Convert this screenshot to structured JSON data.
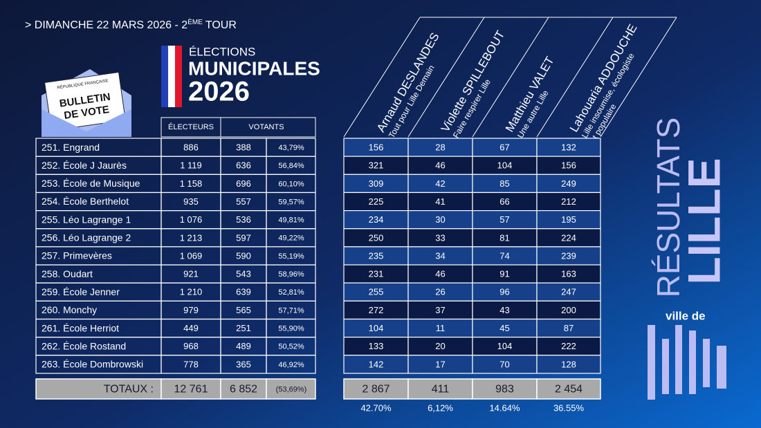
{
  "header": {
    "date": "> DIMANCHE 22 MARS 2026 - 2",
    "date_sup": "ÈME",
    "date_end": "TOUR"
  },
  "logo": {
    "line1": "ÉLECTIONS",
    "line2": "MUNICIPALES",
    "line3": "2026"
  },
  "ballot": {
    "republic": "RÉPUBLIQUE FRANÇAISE",
    "line1": "BULLETIN",
    "line2": "DE VOTE"
  },
  "table": {
    "headers": {
      "electeurs": "ÉLECTEURS",
      "votants": "VOTANTS"
    },
    "candidates": [
      {
        "name": "Arnaud DESLANDES",
        "list": [
          "Tout pour Lille Demain"
        ]
      },
      {
        "name": "Violette SPILLEBOUT",
        "list": [
          "Faire respirer Lille"
        ]
      },
      {
        "name": "Matthieu VALET",
        "list": [
          "Une autre Lille"
        ]
      },
      {
        "name": "Lahouaria ADDOUCHE",
        "list": [
          "Lille insoumise, écologiste",
          "et populaire"
        ]
      }
    ],
    "rows": [
      {
        "bureau": "251. Engrand",
        "electeurs": "886",
        "votants": 388,
        "pct": "43,79%",
        "votes": [
          156,
          28,
          67,
          132
        ]
      },
      {
        "bureau": "252. École J Jaurès",
        "electeurs": "1 119",
        "votants": 636,
        "pct": "56,84%",
        "votes": [
          321,
          46,
          104,
          156
        ]
      },
      {
        "bureau": "253. École de Musique",
        "electeurs": "1 158",
        "votants": 696,
        "pct": "60,10%",
        "votes": [
          309,
          42,
          85,
          249
        ]
      },
      {
        "bureau": "254. École Berthelot",
        "electeurs": "935",
        "votants": 557,
        "pct": "59,57%",
        "votes": [
          225,
          41,
          66,
          212
        ]
      },
      {
        "bureau": "255. Léo Lagrange 1",
        "electeurs": "1 076",
        "votants": 536,
        "pct": "49,81%",
        "votes": [
          234,
          30,
          57,
          195
        ]
      },
      {
        "bureau": "256. Léo Lagrange 2",
        "electeurs": "1 213",
        "votants": 597,
        "pct": "49,22%",
        "votes": [
          250,
          33,
          81,
          224
        ]
      },
      {
        "bureau": "257. Primevères",
        "electeurs": "1 069",
        "votants": 590,
        "pct": "55,19%",
        "votes": [
          235,
          34,
          74,
          239
        ]
      },
      {
        "bureau": "258. Oudart",
        "electeurs": "921",
        "votants": 543,
        "pct": "58,96%",
        "votes": [
          231,
          46,
          91,
          163
        ]
      },
      {
        "bureau": "259. École Jenner",
        "electeurs": "1 210",
        "votants": 639,
        "pct": "52,81%",
        "votes": [
          255,
          26,
          96,
          247
        ]
      },
      {
        "bureau": "260. Monchy",
        "electeurs": "979",
        "votants": 565,
        "pct": "57,71%",
        "votes": [
          272,
          37,
          43,
          200
        ]
      },
      {
        "bureau": "261. École Herriot",
        "electeurs": "449",
        "votants": 251,
        "pct": "55,90%",
        "votes": [
          104,
          11,
          45,
          87
        ]
      },
      {
        "bureau": "262. École Rostand",
        "electeurs": "968",
        "votants": 489,
        "pct": "50,52%",
        "votes": [
          133,
          20,
          104,
          222
        ]
      },
      {
        "bureau": "263. École Dombrowski",
        "electeurs": "778",
        "votants": 365,
        "pct": "46,92%",
        "votes": [
          142,
          17,
          70,
          128
        ]
      }
    ],
    "totals": {
      "label": "TOTAUX :",
      "electeurs": "12 761",
      "votants": "6 852",
      "pct": "(53,69%)",
      "votes": [
        "2 867",
        "411",
        "983",
        "2 454"
      ],
      "shares": [
        "42.70%",
        "6,12%",
        "14.64%",
        "36.55%"
      ]
    }
  },
  "side": {
    "resultats": "RÉSULTATS",
    "city": "LILLE",
    "ville_de": "ville de"
  }
}
